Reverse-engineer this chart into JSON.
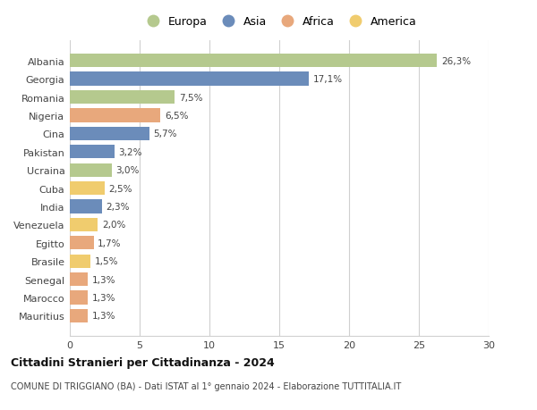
{
  "countries": [
    "Albania",
    "Georgia",
    "Romania",
    "Nigeria",
    "Cina",
    "Pakistan",
    "Ucraina",
    "Cuba",
    "India",
    "Venezuela",
    "Egitto",
    "Brasile",
    "Senegal",
    "Marocco",
    "Mauritius"
  ],
  "values": [
    26.3,
    17.1,
    7.5,
    6.5,
    5.7,
    3.2,
    3.0,
    2.5,
    2.3,
    2.0,
    1.7,
    1.5,
    1.3,
    1.3,
    1.3
  ],
  "labels": [
    "26,3%",
    "17,1%",
    "7,5%",
    "6,5%",
    "5,7%",
    "3,2%",
    "3,0%",
    "2,5%",
    "2,3%",
    "2,0%",
    "1,7%",
    "1,5%",
    "1,3%",
    "1,3%",
    "1,3%"
  ],
  "continents": [
    "Europa",
    "Asia",
    "Europa",
    "Africa",
    "Asia",
    "Asia",
    "Europa",
    "America",
    "Asia",
    "America",
    "Africa",
    "America",
    "Africa",
    "Africa",
    "Africa"
  ],
  "colors": {
    "Europa": "#b5c98e",
    "Asia": "#6b8cba",
    "Africa": "#e8a87c",
    "America": "#f0cc6e"
  },
  "legend_order": [
    "Europa",
    "Asia",
    "Africa",
    "America"
  ],
  "xlim": [
    0,
    30
  ],
  "xticks": [
    0,
    5,
    10,
    15,
    20,
    25,
    30
  ],
  "title": "Cittadini Stranieri per Cittadinanza - 2024",
  "subtitle": "COMUNE DI TRIGGIANO (BA) - Dati ISTAT al 1° gennaio 2024 - Elaborazione TUTTITALIA.IT",
  "bg_color": "#ffffff",
  "grid_color": "#d0d0d0",
  "bar_height": 0.75
}
